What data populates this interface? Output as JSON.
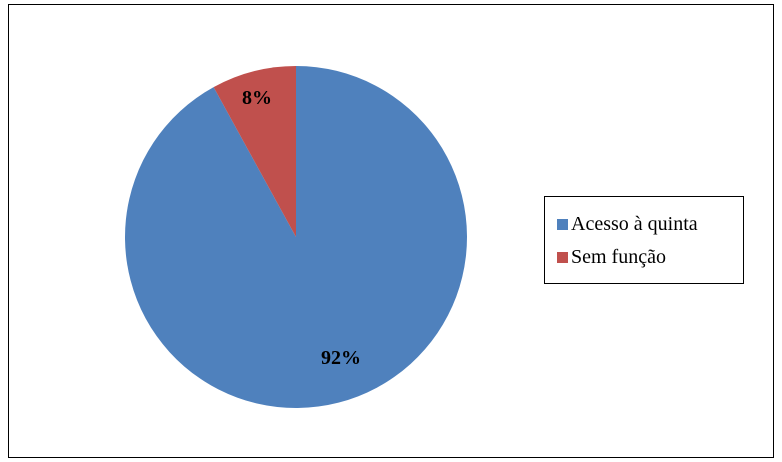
{
  "chart_data": {
    "type": "pie",
    "title": "",
    "slices": [
      {
        "name": "Acesso à quinta",
        "value": 92,
        "label": "92%",
        "color": "#4F81BD"
      },
      {
        "name": "Sem função",
        "value": 8,
        "label": "8%",
        "color": "#C0504D"
      }
    ],
    "start_angle_deg": 0,
    "direction": "clockwise",
    "legend_position": "right"
  },
  "legend": {
    "items": [
      {
        "label": "Acesso à quinta",
        "color": "#4F81BD"
      },
      {
        "label": "Sem função",
        "color": "#C0504D"
      }
    ]
  }
}
